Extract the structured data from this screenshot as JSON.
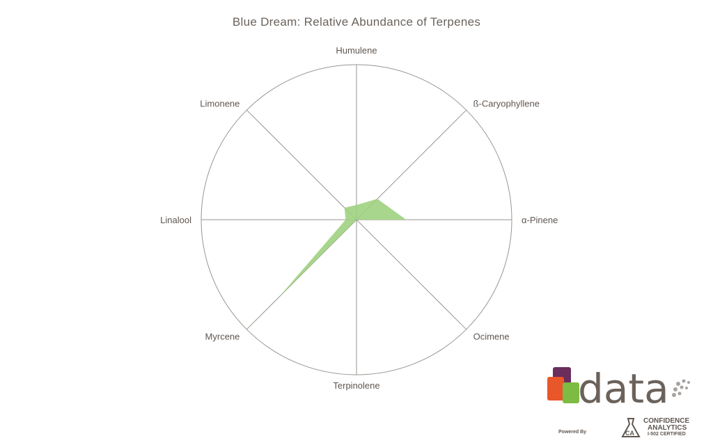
{
  "chart_data": {
    "type": "radar",
    "title": "Blue Dream: Relative Abundance of Terpenes",
    "categories": [
      "Humulene",
      "ß-Caryophyllene",
      "α-Pinene",
      "Ocimene",
      "Terpinolene",
      "Myrcene",
      "Linalool",
      "Limonene"
    ],
    "values": [
      0.095,
      0.19,
      0.32,
      0.0,
      0.0,
      0.71,
      0.07,
      0.11
    ],
    "range": [
      0,
      1
    ],
    "grid": true,
    "fill_color": "#9fd27f",
    "grid_color": "#9a9590"
  },
  "logo": {
    "wordmark": "data",
    "powered_by": "Powered By",
    "company_line1": "CONFIDENCE",
    "company_line2": "ANALYTICS",
    "company_line3": "I-502 CERTIFIED",
    "badge": "CA",
    "colors": {
      "orange": "#e8562a",
      "purple": "#6b2d5c",
      "green": "#7dbb42",
      "gray": "#6b625b"
    }
  }
}
